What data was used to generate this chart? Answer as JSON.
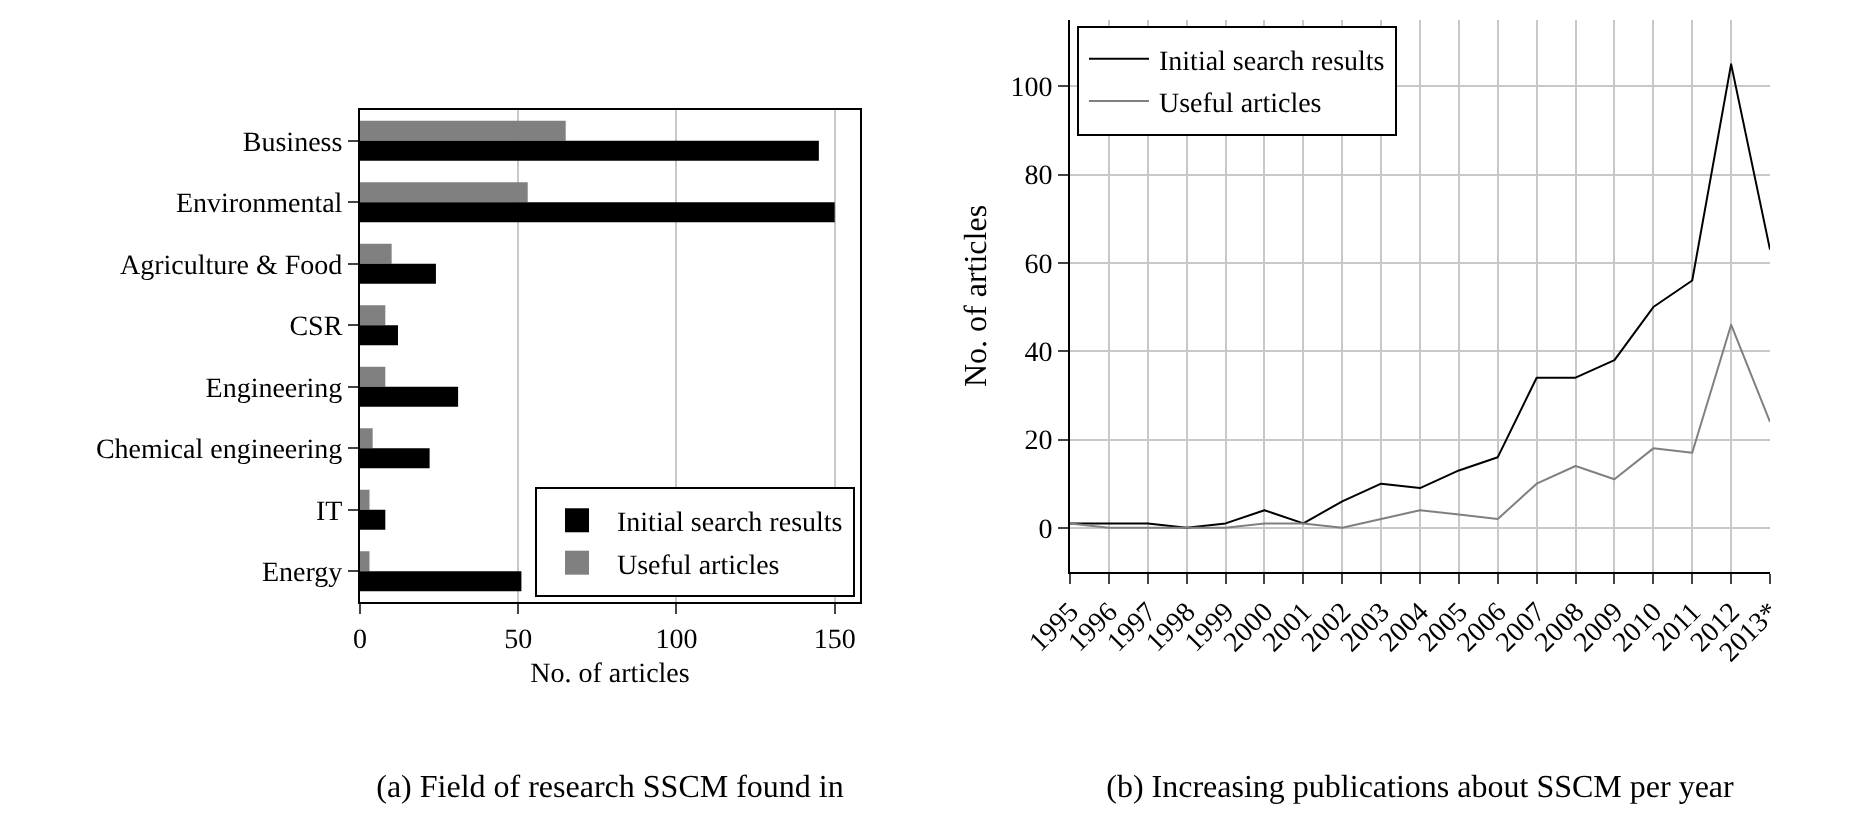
{
  "chart_data": [
    {
      "type": "bar",
      "orientation": "horizontal",
      "title": "(a) Field of research SSCM found in",
      "xlabel": "No. of articles",
      "categories": [
        "Business",
        "Environmental",
        "Agriculture & Food",
        "CSR",
        "Engineering",
        "Chemical engineering",
        "IT",
        "Energy"
      ],
      "series": [
        {
          "name": "Initial search results",
          "color": "#000000",
          "values": [
            145,
            150,
            24,
            12,
            31,
            22,
            8,
            51
          ]
        },
        {
          "name": "Useful articles",
          "color": "#808080",
          "values": [
            65,
            53,
            10,
            8,
            8,
            4,
            3,
            3
          ]
        }
      ],
      "xlim": [
        0,
        158
      ],
      "xticks": [
        0,
        50,
        100,
        150
      ],
      "grid": "x",
      "legend": "bottom right"
    },
    {
      "type": "line",
      "title": "(b) Increasing publications about SSCM per year",
      "ylabel": "No. of articles",
      "categories": [
        "1995",
        "1996",
        "1997",
        "1998",
        "1999",
        "2000",
        "2001",
        "2002",
        "2003",
        "2004",
        "2005",
        "2006",
        "2007",
        "2008",
        "2009",
        "2010",
        "2011",
        "2012",
        "2013*"
      ],
      "series": [
        {
          "name": "Initial search results",
          "color": "#000000",
          "values": [
            1,
            1,
            1,
            0,
            1,
            4,
            1,
            6,
            10,
            9,
            13,
            16,
            34,
            34,
            38,
            50,
            56,
            105,
            63
          ]
        },
        {
          "name": "Useful articles",
          "color": "#808080",
          "values": [
            1,
            0,
            0,
            0,
            0,
            1,
            1,
            0,
            2,
            4,
            3,
            2,
            10,
            14,
            11,
            18,
            17,
            46,
            24
          ]
        }
      ],
      "ylim": [
        -10,
        115
      ],
      "yticks": [
        0,
        20,
        40,
        60,
        80,
        100
      ],
      "grid": true,
      "legend": "top left",
      "marker": "none",
      "line_style": "solid"
    }
  ]
}
